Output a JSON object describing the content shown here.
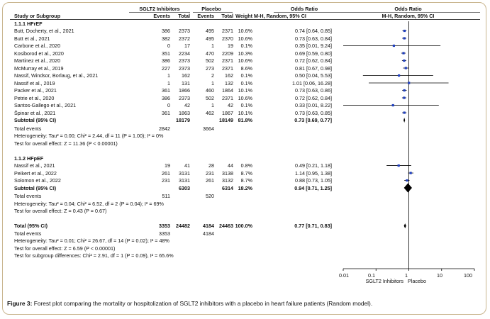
{
  "header": {
    "group1": "SGLT2 Inhibitors",
    "group2": "Placebo",
    "effect": "Odds Ratio",
    "plot_title": "Odds Ratio",
    "study_col": "Study or Subgroup",
    "events": "Events",
    "total": "Total",
    "weight": "Weight",
    "method": "M-H, Random, 95% CI",
    "plot_method": "M-H, Random, 95% CI"
  },
  "subgroups": [
    {
      "title": "1.1.1 HFrEF",
      "studies": [
        {
          "name": "Butt, Docherty, et al., 2021",
          "e1": "386",
          "t1": "2373",
          "e2": "495",
          "t2": "2371",
          "w": "10.6%",
          "ci": "0.74 [0.64, 0.85]"
        },
        {
          "name": "Butt et al., 2021",
          "e1": "382",
          "t1": "2372",
          "e2": "495",
          "t2": "2370",
          "w": "10.6%",
          "ci": "0.73 [0.63, 0.84]"
        },
        {
          "name": "Carbone et al., 2020",
          "e1": "0",
          "t1": "17",
          "e2": "1",
          "t2": "19",
          "w": "0.1%",
          "ci": "0.35 [0.01, 9.24]"
        },
        {
          "name": "Kosiborod et al., 2020",
          "e1": "351",
          "t1": "2234",
          "e2": "470",
          "t2": "2209",
          "w": "10.3%",
          "ci": "0.69 [0.59, 0.80]"
        },
        {
          "name": "Martinez et al., 2020",
          "e1": "386",
          "t1": "2373",
          "e2": "502",
          "t2": "2371",
          "w": "10.6%",
          "ci": "0.72 [0.62, 0.84]"
        },
        {
          "name": "McMurray et al., 2019",
          "e1": "227",
          "t1": "2373",
          "e2": "273",
          "t2": "2371",
          "w": "8.6%",
          "ci": "0.81 [0.67, 0.98]"
        },
        {
          "name": "Nassif, Windsor, Borlaug, et al., 2021",
          "e1": "1",
          "t1": "162",
          "e2": "2",
          "t2": "162",
          "w": "0.1%",
          "ci": "0.50 [0.04, 5.53]"
        },
        {
          "name": "Nassif et al., 2019",
          "e1": "1",
          "t1": "131",
          "e2": "1",
          "t2": "132",
          "w": "0.1%",
          "ci": "1.01 [0.06, 16.28]"
        },
        {
          "name": "Packer et al., 2021",
          "e1": "361",
          "t1": "1866",
          "e2": "460",
          "t2": "1864",
          "w": "10.1%",
          "ci": "0.73 [0.63, 0.86]"
        },
        {
          "name": "Petrie et al., 2020",
          "e1": "386",
          "t1": "2373",
          "e2": "502",
          "t2": "2371",
          "w": "10.6%",
          "ci": "0.72 [0.62, 0.84]"
        },
        {
          "name": "Santos-Gallego et al., 2021",
          "e1": "0",
          "t1": "42",
          "e2": "1",
          "t2": "42",
          "w": "0.1%",
          "ci": "0.33 [0.01, 8.22]"
        },
        {
          "name": "Špinar et al., 2021",
          "e1": "361",
          "t1": "1863",
          "e2": "462",
          "t2": "1867",
          "w": "10.1%",
          "ci": "0.73 [0.63, 0.85]"
        }
      ],
      "subtotal": {
        "label": "Subtotal (95% CI)",
        "t1": "18179",
        "t2": "18149",
        "w": "81.8%",
        "ci": "0.73 [0.69, 0.77]"
      },
      "total_events": {
        "label": "Total events",
        "e1": "2842",
        "e2": "3664"
      },
      "heterogeneity": "Heterogeneity: Tau² = 0.00; Chi² = 2.44, df = 11 (P = 1.00); I² = 0%",
      "overall": "Test for overall effect: Z = 11.36 (P < 0.00001)"
    },
    {
      "title": "1.1.2 HFpEF",
      "studies": [
        {
          "name": "Nassif et al., 2021",
          "e1": "19",
          "t1": "41",
          "e2": "28",
          "t2": "44",
          "w": "0.8%",
          "ci": "0.49 [0.21, 1.18]"
        },
        {
          "name": "Peikert et al., 2022",
          "e1": "261",
          "t1": "3131",
          "e2": "231",
          "t2": "3138",
          "w": "8.7%",
          "ci": "1.14 [0.95, 1.38]"
        },
        {
          "name": "Solomon et al., 2022",
          "e1": "231",
          "t1": "3131",
          "e2": "261",
          "t2": "3132",
          "w": "8.7%",
          "ci": "0.88 [0.73, 1.05]"
        }
      ],
      "subtotal": {
        "label": "Subtotal (95% CI)",
        "t1": "6303",
        "t2": "6314",
        "w": "18.2%",
        "ci": "0.94 [0.71, 1.25]"
      },
      "total_events": {
        "label": "Total events",
        "e1": "511",
        "e2": "520"
      },
      "heterogeneity": "Heterogeneity: Tau² = 0.04; Chi² = 6.52, df = 2 (P = 0.04); I² = 69%",
      "overall": "Test for overall effect: Z = 0.43 (P = 0.67)"
    }
  ],
  "total": {
    "label": "Total (95% CI)",
    "t1": "24482",
    "t2": "24463",
    "w": "100.0%",
    "ci": "0.77 [0.71, 0.83]",
    "events_label": "Total events",
    "e1": "3353",
    "e2": "4184",
    "heterogeneity": "Heterogeneity: Tau² = 0.01; Chi² = 26.67, df = 14 (P = 0.02); I² = 48%",
    "overall": "Test for overall effect: Z = 6.59 (P < 0.00001)",
    "subgroup_diff": "Test for subgroup differences: Chi² = 2.91, df = 1 (P = 0.09), I² = 65.6%"
  },
  "axis": {
    "ticks": [
      "0.01",
      "0.1",
      "1",
      "10",
      "100"
    ],
    "left_label": "SGLT2 Inhibitors",
    "right_label": "Placebo"
  },
  "caption": {
    "prefix": "Figure 3:",
    "text": " Forest plot comparing the mortality or hospitolization of SGLT2 inhibitors with a placebo in heart failure patients (Random model)."
  },
  "chart_data": {
    "type": "forest",
    "scale": "log",
    "xlim": [
      0.01,
      100
    ],
    "marker_color": "#1f3fbf",
    "studies": [
      {
        "or": 0.74,
        "lo": 0.64,
        "hi": 0.85
      },
      {
        "or": 0.73,
        "lo": 0.63,
        "hi": 0.84
      },
      {
        "or": 0.35,
        "lo": 0.01,
        "hi": 9.24
      },
      {
        "or": 0.69,
        "lo": 0.59,
        "hi": 0.8
      },
      {
        "or": 0.72,
        "lo": 0.62,
        "hi": 0.84
      },
      {
        "or": 0.81,
        "lo": 0.67,
        "hi": 0.98
      },
      {
        "or": 0.5,
        "lo": 0.04,
        "hi": 5.53
      },
      {
        "or": 1.01,
        "lo": 0.06,
        "hi": 16.28
      },
      {
        "or": 0.73,
        "lo": 0.63,
        "hi": 0.86
      },
      {
        "or": 0.72,
        "lo": 0.62,
        "hi": 0.84
      },
      {
        "or": 0.33,
        "lo": 0.01,
        "hi": 8.22
      },
      {
        "or": 0.73,
        "lo": 0.63,
        "hi": 0.85
      },
      {
        "or": 0.49,
        "lo": 0.21,
        "hi": 1.18
      },
      {
        "or": 1.14,
        "lo": 0.95,
        "hi": 1.38
      },
      {
        "or": 0.88,
        "lo": 0.73,
        "hi": 1.05
      }
    ],
    "diamonds": [
      {
        "or": 0.73,
        "lo": 0.69,
        "hi": 0.77
      },
      {
        "or": 0.94,
        "lo": 0.71,
        "hi": 1.25
      },
      {
        "or": 0.77,
        "lo": 0.71,
        "hi": 0.83
      }
    ]
  }
}
